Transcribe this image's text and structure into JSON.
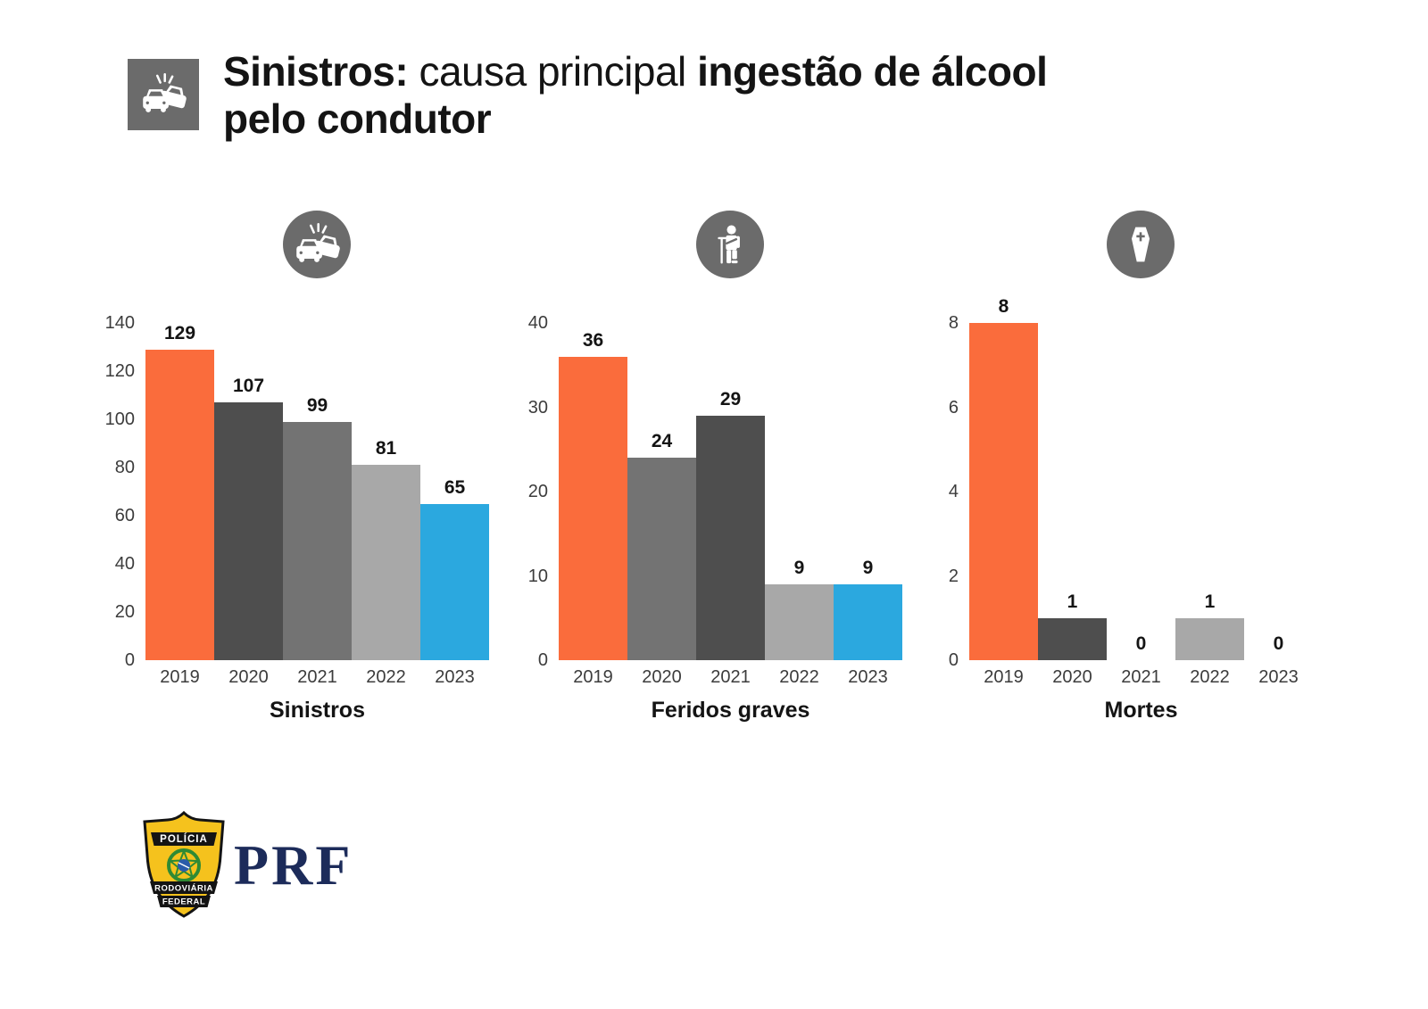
{
  "header": {
    "icon": "car-crash-icon",
    "title": {
      "bold_lead": "Sinistros:",
      "regular_mid": "causa principal",
      "bold_tail": "ingestão de álcool",
      "line2_bold": "pelo condutor"
    }
  },
  "palette": {
    "orange": "#FA6C3C",
    "dark_gray": "#4E4E4E",
    "mid_gray": "#737373",
    "light_gray": "#A8A8A8",
    "blue": "#2BA8DF",
    "icon_gray": "#6B6B6B",
    "navy": "#1C2B5A",
    "shield_yellow": "#F5C21D",
    "label_gray": "#3C3C3C"
  },
  "chart_data": [
    {
      "type": "bar",
      "name": "sinistros",
      "title": "Sinistros",
      "icon": "car-crash-icon",
      "categories": [
        "2019",
        "2020",
        "2021",
        "2022",
        "2023"
      ],
      "values": [
        129,
        107,
        99,
        81,
        65
      ],
      "bar_colors": [
        "#FA6C3C",
        "#4E4E4E",
        "#737373",
        "#A8A8A8",
        "#2BA8DF"
      ],
      "ylim": [
        0,
        140
      ],
      "yticks": [
        0,
        20,
        40,
        60,
        80,
        100,
        120,
        140
      ],
      "grid": false,
      "value_labels": true
    },
    {
      "type": "bar",
      "name": "feridos-graves",
      "title": "Feridos graves",
      "icon": "injured-person-icon",
      "categories": [
        "2019",
        "2020",
        "2021",
        "2022",
        "2023"
      ],
      "values": [
        36,
        24,
        29,
        9,
        9
      ],
      "bar_colors": [
        "#FA6C3C",
        "#737373",
        "#4E4E4E",
        "#A8A8A8",
        "#2BA8DF"
      ],
      "ylim": [
        0,
        40
      ],
      "yticks": [
        0,
        10,
        20,
        30,
        40
      ],
      "grid": false,
      "value_labels": true
    },
    {
      "type": "bar",
      "name": "mortes",
      "title": "Mortes",
      "icon": "coffin-icon",
      "categories": [
        "2019",
        "2020",
        "2021",
        "2022",
        "2023"
      ],
      "values": [
        8,
        1,
        0,
        1,
        0
      ],
      "bar_colors": [
        "#FA6C3C",
        "#4E4E4E",
        "#737373",
        "#A8A8A8",
        "#2BA8DF"
      ],
      "ylim": [
        0,
        8
      ],
      "yticks": [
        0,
        2,
        4,
        6,
        8
      ],
      "grid": false,
      "value_labels": true
    }
  ],
  "footer": {
    "logo": {
      "top_banner": "POLÍCIA",
      "middle_banner": "RODOVIÁRIA",
      "bottom_banner": "FEDERAL"
    },
    "brand": "PRF"
  }
}
